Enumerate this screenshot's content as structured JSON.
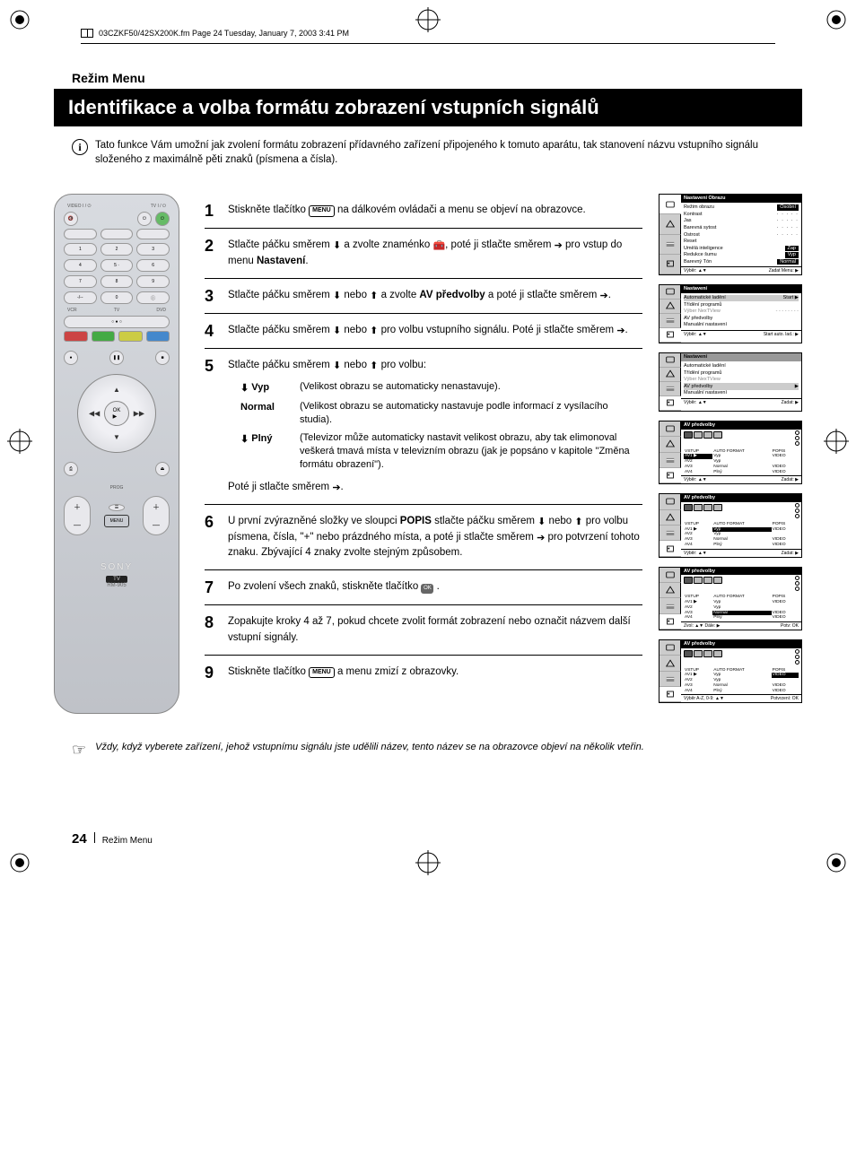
{
  "header": {
    "filepath": "03CZKF50/42SX200K.fm  Page 24  Tuesday, January 7, 2003  3:41 PM"
  },
  "section_label": "Režim Menu",
  "title": "Identifikace a volba formátu zobrazení vstupních signálů",
  "intro": "Tato funkce Vám umožní jak zvolení  formátu zobrazení přídavného zařízení připojeného k tomuto aparátu, tak stanovení názvu vstupního signálu složeného z maximálně pěti znaků (písmena a čísla).",
  "steps": [
    {
      "n": "1",
      "body_parts": [
        "Stiskněte tlačítko ",
        "[MENU]",
        " na dálkovém ovládači a menu se objeví na obrazovce."
      ]
    },
    {
      "n": "2",
      "body_parts": [
        "Stlačte páčku směrem ",
        "↓",
        " a zvolte znaménko  ",
        "⎁",
        ", poté ji stlačte směrem ",
        "→",
        " pro vstup do menu ",
        "*Nastavení*",
        "."
      ]
    },
    {
      "n": "3",
      "body_parts": [
        "Stlačte páčku směrem ",
        "↓",
        " nebo ",
        "↑",
        " a zvolte ",
        "*AV předvolby*",
        " a poté ji stlačte směrem ",
        "→",
        "."
      ]
    },
    {
      "n": "4",
      "body_parts": [
        "Stlačte páčku směrem ",
        "↓",
        " nebo ",
        "↑",
        " pro volbu vstupního signálu. Poté ji stlačte směrem ",
        "→",
        "."
      ]
    },
    {
      "n": "5",
      "body_parts": [
        "Stlačte páčku směrem ",
        "↓",
        " nebo ",
        "↑",
        " pro volbu:"
      ]
    },
    {
      "n": "6",
      "body_parts": [
        "U první zvýrazněné složky ve sloupci ",
        "*POPIS*",
        " stlačte páčku směrem ",
        "↓",
        " nebo ",
        "↑",
        " pro volbu písmena, čísla, \"+\"  nebo prázdného místa, a poté ji stlačte směrem ",
        "→",
        " pro potvrzení tohoto znaku. Zbývající 4 znaky zvolte stejným způsobem."
      ]
    },
    {
      "n": "7",
      "body_parts": [
        "Po zvolení všech znaků, stiskněte tlačítko  ",
        "[OK]",
        " ."
      ]
    },
    {
      "n": "8",
      "body_parts": [
        "Zopakujte kroky 4 až 7, pokud chcete zvolit formát zobrazení nebo označit názvem další vstupní signály."
      ]
    },
    {
      "n": "9",
      "body_parts": [
        "Stiskněte tlačítko ",
        "[MENU]",
        " a menu zmizí z obrazovky."
      ]
    }
  ],
  "step5_options": [
    {
      "sym": "↓",
      "label": "Vyp",
      "desc": "(Velikost obrazu se automaticky nenastavuje)."
    },
    {
      "sym": "",
      "label": "Normal",
      "desc": "(Velikost obrazu se automaticky nastavuje podle informací z vysílacího studia)."
    },
    {
      "sym": "↓",
      "label": "Plný",
      "desc": "(Televizor může automaticky nastavit velikost obrazu, aby tak elimonoval veškerá tmavá místa v televizním obrazu (jak je popsáno v kapitole \"Změna formátu obrazení\")."
    }
  ],
  "step5_tail": "Poté ji stlačte směrem →.",
  "tip": "Vždy, když vyberete zařízení, jehož vstupnímu signálu jste udělili název, tento název se na obrazovce objeví na několik vteřin.",
  "footer": {
    "page": "24",
    "label": "Režim Menu"
  },
  "remote": {
    "top_labels": [
      "VIDEO I / ⏻",
      "TV I / ⏻"
    ],
    "vcr_tv_dvd": [
      "VCR",
      "TV",
      "DVD"
    ],
    "brand": "SONY",
    "tv_badge": "TV",
    "model": "RM-905"
  },
  "osd_screens": [
    {
      "title": "Nastavení Obrazu",
      "title_bg": "#000000",
      "rows": [
        {
          "l": "Režim obrazu",
          "v": "Osobní",
          "black": true
        },
        {
          "l": "Kontrast",
          "dots": true
        },
        {
          "l": "Jas",
          "dots": true
        },
        {
          "l": "Barevná sytost",
          "dots": true
        },
        {
          "l": "Ostrost",
          "dots": true
        },
        {
          "l": "Reset",
          "v": ""
        },
        {
          "l": "Umělá inteligence",
          "v": "Zap",
          "black": true
        },
        {
          "l": "Redukce šumu",
          "v": "Vyp",
          "black": true
        },
        {
          "l": "Barevný Tón",
          "v": "Normal",
          "black": true
        }
      ],
      "foot_l": "Výběr: ▲▼",
      "foot_r": "Zadat Menu: ▶"
    },
    {
      "title": "Nastavení",
      "title_bg": "#000000",
      "rows": [
        {
          "l": "Automatické ladění",
          "v": "Start ▶",
          "hl": true
        },
        {
          "l": "Třídění programů",
          "v": ""
        },
        {
          "l": "Výber NexTView",
          "v": "- - - - - - - -",
          "grey": true
        },
        {
          "l": "AV předvolby",
          "v": ""
        },
        {
          "l": "Manuální nastavení",
          "v": ""
        }
      ],
      "foot_l": "Výběr: ▲▼",
      "foot_r": "Start auto. lad.: ▶"
    },
    {
      "title": "Nastavení",
      "title_bg": "#999999",
      "rows": [
        {
          "l": "Automatické ladění",
          "v": ""
        },
        {
          "l": "Třídění programů",
          "v": ""
        },
        {
          "l": "Výber NexTView",
          "v": "",
          "grey": true
        },
        {
          "l": "AV předvolby",
          "v": "▶",
          "hl": true
        },
        {
          "l": "Manuální nastavení",
          "v": ""
        }
      ],
      "foot_l": "Výběr: ▲▼",
      "foot_r": "Zadat: ▶"
    },
    {
      "title": "AV předvolby",
      "av": true,
      "hl_row": 0,
      "hl_col": 0,
      "foot_l": "Výběr: ▲▼",
      "foot_r": "Zadat: ▶"
    },
    {
      "title": "AV předvolby",
      "av": true,
      "hl_row": 0,
      "hl_col": 1,
      "foot_l": "Výběr: ▲▼",
      "foot_r": "Zadat: ▶"
    },
    {
      "title": "AV předvolby",
      "av": true,
      "hl_row": 2,
      "hl_col": 1,
      "foot_l": "Zvol: ▲▼  Dále: ▶",
      "foot_r": "Potv: OK"
    },
    {
      "title": "AV předvolby",
      "av": true,
      "hl_row": 0,
      "hl_col": 2,
      "foot_l": "Výběr A-Z, 0-9: ▲▼",
      "foot_r": "Potvrzení: OK"
    }
  ],
  "av_table": {
    "head": [
      "VSTUP",
      "AUTO FORMAT",
      "POPIS"
    ],
    "rows": [
      [
        "AV1 ▶",
        "Vyp",
        "VIDEO"
      ],
      [
        "AV2",
        "Vyp",
        ""
      ],
      [
        "AV3",
        "Normal",
        "VIDEO"
      ],
      [
        "AV4",
        "Plný",
        "VIDEO"
      ]
    ]
  },
  "colors": {
    "title_bg": "#000000",
    "page_bg": "#ffffff",
    "osd_hl": "#cccccc",
    "osd_grey": "#aaaaaa",
    "remote_grad_top": "#d8dbe0",
    "remote_grad_bot": "#bfc2c8"
  }
}
